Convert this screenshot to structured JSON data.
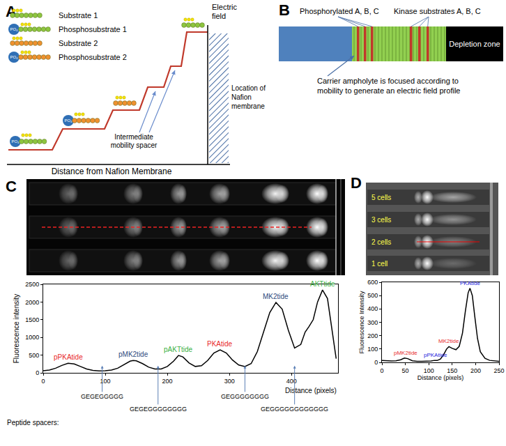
{
  "panels": {
    "A": {
      "label": "A",
      "items": [
        "Substrate 1",
        "Phosphosubstrate 1",
        "Substrate 2",
        "Phosphosubstrate 2"
      ],
      "phosphate": "PO₄",
      "axis_y": [
        "Electric",
        "field"
      ],
      "membrane": [
        "Location of",
        "Nafion",
        "membrane"
      ],
      "spacer": [
        "Intermediate",
        "mobility spacer"
      ],
      "axis_x": "Distance from Nafion Membrane"
    },
    "B": {
      "label": "B",
      "phosphorylated": "Phosphorylated A, B, C",
      "substrates": "Kinase substrates A, B, C",
      "depletion": "Depletion zone",
      "ampholyte": [
        "Carrier ampholyte is focused according to",
        "mobility to generate an electric field profile"
      ]
    },
    "C": {
      "label": "C"
    },
    "D": {
      "label": "D",
      "lanes": [
        "5 cells",
        "3 cells",
        "2 cells",
        "1 cell"
      ]
    }
  },
  "chart_data": [
    {
      "type": "line",
      "x_label": "Distance (pixels)",
      "y_label": "Fluorescence intensity",
      "color": "#000000",
      "x": [
        0,
        10,
        20,
        30,
        40,
        50,
        60,
        70,
        80,
        90,
        100,
        110,
        120,
        130,
        140,
        145,
        150,
        160,
        170,
        180,
        190,
        200,
        210,
        218,
        225,
        235,
        245,
        255,
        265,
        275,
        285,
        295,
        305,
        315,
        325,
        335,
        345,
        355,
        365,
        375,
        385,
        395,
        405,
        415,
        422,
        428,
        435,
        442,
        450,
        458,
        465,
        472
      ],
      "values": [
        60,
        80,
        130,
        210,
        270,
        250,
        180,
        110,
        70,
        55,
        60,
        80,
        130,
        230,
        330,
        350,
        340,
        260,
        160,
        110,
        110,
        180,
        330,
        490,
        450,
        280,
        180,
        200,
        350,
        560,
        650,
        560,
        360,
        220,
        180,
        260,
        600,
        1150,
        1700,
        1990,
        1800,
        1200,
        700,
        800,
        1150,
        1300,
        1500,
        2000,
        2340,
        2100,
        1200,
        400
      ],
      "xlim": [
        0,
        475
      ],
      "xticks": [
        0,
        100,
        200,
        300,
        400
      ],
      "ylim": [
        0,
        2500
      ],
      "yticks": [
        0,
        500,
        1000,
        1500,
        2000,
        2500
      ],
      "grid": false,
      "annotations": [
        {
          "text": "pPKAtide",
          "x": 40,
          "y": 270,
          "color": "#e8292b"
        },
        {
          "text": "pMK2tide",
          "x": 145,
          "y": 350,
          "color": "#2e4a7d"
        },
        {
          "text": "pAKTtide",
          "x": 218,
          "y": 490,
          "color": "#3cb043"
        },
        {
          "text": "PKAtide",
          "x": 285,
          "y": 650,
          "color": "#e8292b"
        },
        {
          "text": "MK2tide",
          "x": 375,
          "y": 1990,
          "color": "#2e4a7d"
        },
        {
          "text": "AKTtide",
          "x": 450,
          "y": 2340,
          "color": "#3cb043"
        }
      ],
      "spacers_label": "Peptide spacers:",
      "spacers": [
        {
          "text": "GEGEGGGGG",
          "x": 95
        },
        {
          "text": "GEGEGGGGGGGG",
          "x": 185
        },
        {
          "text": "GEGGGGGGGG",
          "x": 325
        },
        {
          "text": "GEGGGGGGGGGGGG",
          "x": 405
        }
      ]
    },
    {
      "type": "line",
      "x_label": "Distance (pixels)",
      "y_label": "Fluorescence Intensity",
      "color": "#000000",
      "x": [
        0,
        10,
        20,
        30,
        40,
        48,
        55,
        65,
        75,
        85,
        95,
        105,
        112,
        118,
        125,
        132,
        138,
        143,
        150,
        158,
        165,
        172,
        178,
        184,
        188,
        193,
        198,
        204,
        210,
        220,
        230,
        240,
        250
      ],
      "values": [
        15,
        12,
        10,
        12,
        20,
        32,
        28,
        12,
        8,
        8,
        8,
        10,
        15,
        14,
        25,
        60,
        100,
        118,
        105,
        95,
        120,
        220,
        380,
        520,
        555,
        500,
        350,
        180,
        80,
        30,
        15,
        10,
        8
      ],
      "xlim": [
        0,
        250
      ],
      "xticks": [
        0,
        50,
        100,
        150,
        200,
        250
      ],
      "ylim": [
        0,
        600
      ],
      "yticks": [
        0,
        100,
        200,
        300,
        400,
        500,
        600
      ],
      "grid": false,
      "annotations": [
        {
          "text": "pMK2tide",
          "x": 50,
          "y": 32,
          "color": "#e8292b"
        },
        {
          "text": "pPKAtide",
          "x": 115,
          "y": 15,
          "color": "#1a1adb"
        },
        {
          "text": "MK2tide",
          "x": 143,
          "y": 120,
          "color": "#e8292b"
        },
        {
          "text": "PKAtide",
          "x": 188,
          "y": 555,
          "color": "#1a1adb"
        }
      ]
    }
  ]
}
